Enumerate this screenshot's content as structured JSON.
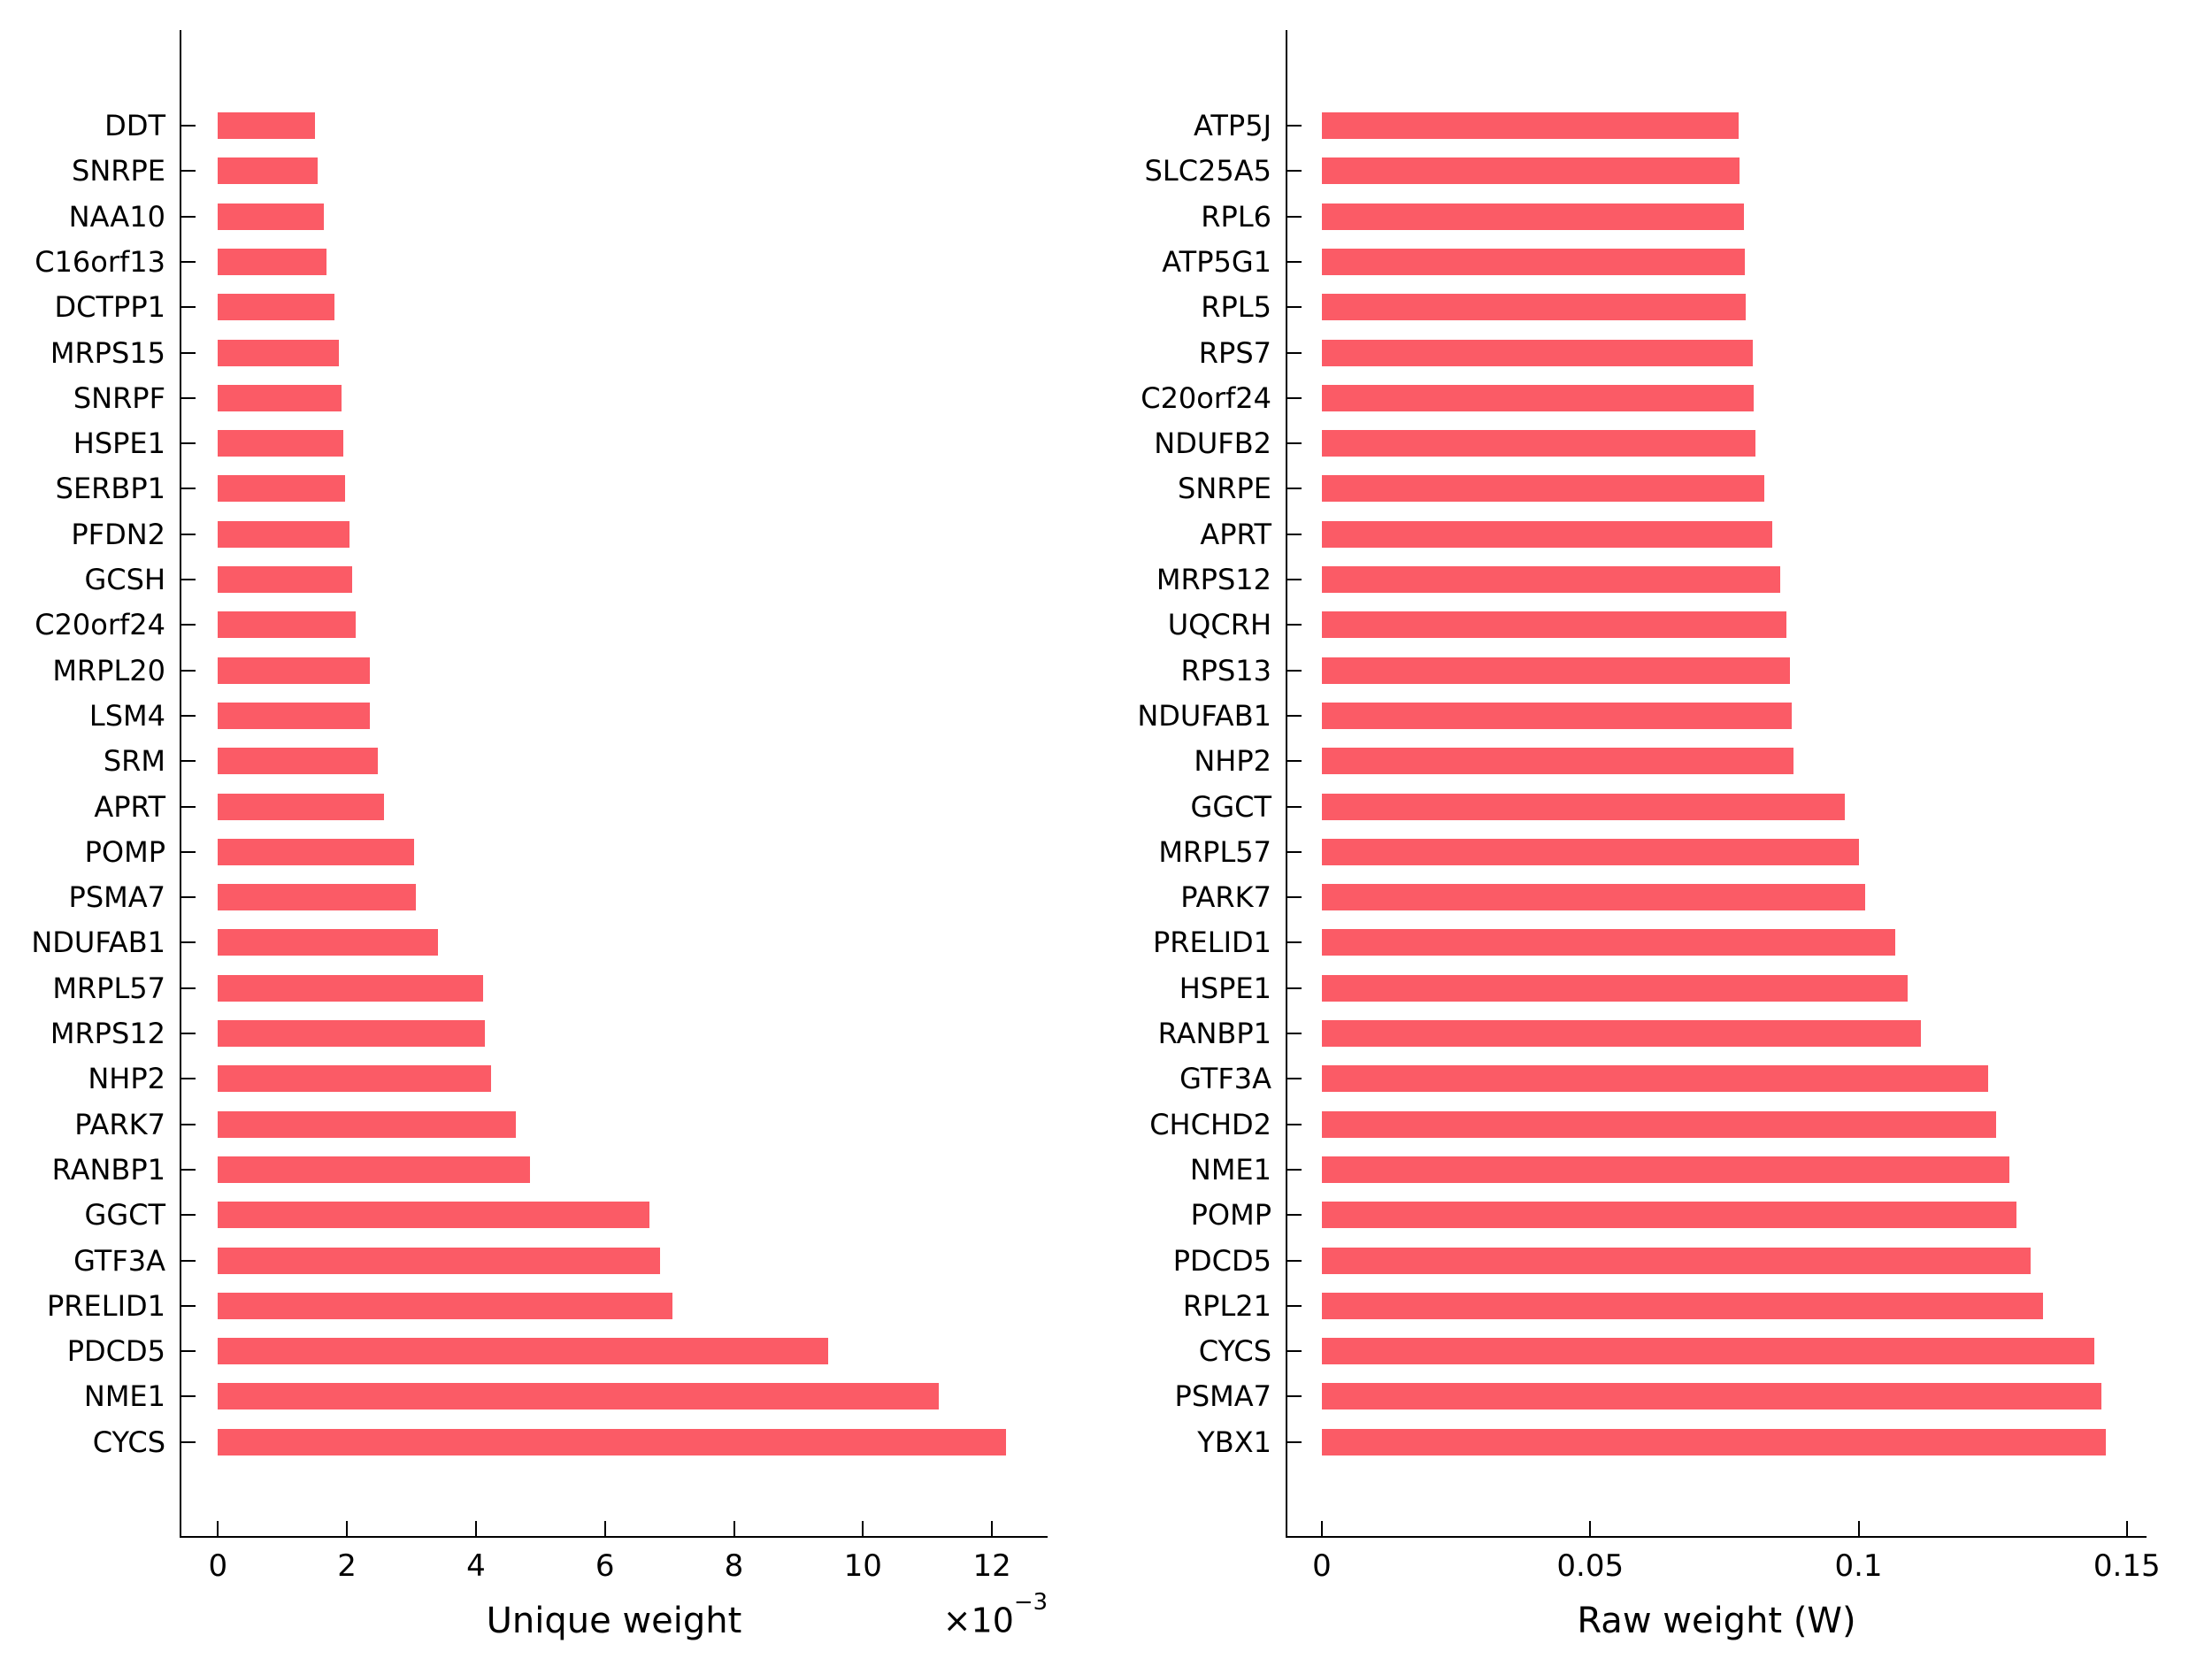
{
  "figure": {
    "background": "#ffffff",
    "bar_color": "#FB5B66",
    "axis_color": "#000000",
    "text_color": "#000000"
  },
  "chart_data": [
    {
      "type": "bar",
      "orientation": "horizontal",
      "title": "",
      "xlabel": "Unique weight",
      "ylabel": "",
      "x_multiplier_base": "×10",
      "x_multiplier_exp": "−3",
      "value_unit_note": "values are in units of 10^-3 as shown by the axis multiplier",
      "grid": false,
      "legend": null,
      "xlim": [
        -0.65,
        12.85
      ],
      "xticks": [
        0,
        2,
        4,
        6,
        8,
        10,
        12
      ],
      "xtick_labels": [
        "0",
        "2",
        "4",
        "6",
        "8",
        "10",
        "12"
      ],
      "categories_top_to_bottom": [
        "DDT",
        "SNRPE",
        "NAA10",
        "C16orf13",
        "DCTPP1",
        "MRPS15",
        "SNRPF",
        "HSPE1",
        "SERBP1",
        "PFDN2",
        "GCSH",
        "C20orf24",
        "MRPL20",
        "LSM4",
        "SRM",
        "APRT",
        "POMP",
        "PSMA7",
        "NDUFAB1",
        "MRPL57",
        "MRPS12",
        "NHP2",
        "PARK7",
        "RANBP1",
        "GGCT",
        "GTF3A",
        "PRELID1",
        "PDCD5",
        "NME1",
        "CYCS"
      ],
      "values": [
        1.5,
        1.55,
        1.64,
        1.69,
        1.8,
        1.88,
        1.92,
        1.94,
        1.97,
        2.04,
        2.08,
        2.14,
        2.35,
        2.36,
        2.48,
        2.57,
        3.04,
        3.07,
        3.41,
        4.11,
        4.14,
        4.24,
        4.62,
        4.84,
        6.69,
        6.86,
        7.04,
        9.46,
        11.17,
        12.22
      ]
    },
    {
      "type": "bar",
      "orientation": "horizontal",
      "title": "",
      "xlabel": "Raw weight (W)",
      "ylabel": "",
      "grid": false,
      "legend": null,
      "xlim": [
        -0.0073,
        0.1535
      ],
      "xticks": [
        0,
        0.05,
        0.1,
        0.15
      ],
      "xtick_labels": [
        "0",
        "0.05",
        "0.1",
        "0.15"
      ],
      "categories_top_to_bottom": [
        "ATP5J",
        "SLC25A5",
        "RPL6",
        "ATP5G1",
        "RPL5",
        "RPS7",
        "C20orf24",
        "NDUFB2",
        "SNRPE",
        "APRT",
        "MRPS12",
        "UQCRH",
        "RPS13",
        "NDUFAB1",
        "NHP2",
        "GGCT",
        "MRPL57",
        "PARK7",
        "PRELID1",
        "HSPE1",
        "RANBP1",
        "GTF3A",
        "CHCHD2",
        "NME1",
        "POMP",
        "PDCD5",
        "RPL21",
        "CYCS",
        "PSMA7",
        "YBX1"
      ],
      "values": [
        0.0777,
        0.0778,
        0.0787,
        0.0788,
        0.0789,
        0.0803,
        0.0804,
        0.0808,
        0.0824,
        0.084,
        0.0854,
        0.0866,
        0.0872,
        0.0876,
        0.0878,
        0.0975,
        0.1,
        0.1013,
        0.1068,
        0.1091,
        0.1117,
        0.1242,
        0.1257,
        0.1281,
        0.1294,
        0.132,
        0.1344,
        0.144,
        0.1452,
        0.1461
      ]
    }
  ]
}
